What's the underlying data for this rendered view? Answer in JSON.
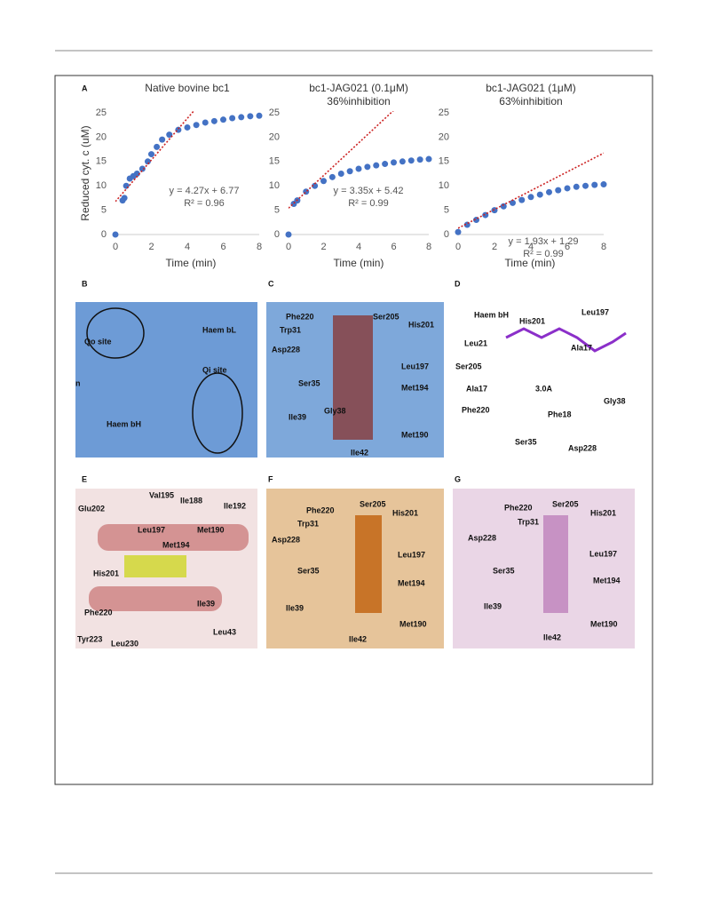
{
  "chart_data": [
    {
      "type": "scatter",
      "title": "Native bovine bc1",
      "xlabel": "Time (min)",
      "ylabel": "Reduced cyt. c (uM)",
      "x": [
        0,
        0.4,
        0.5,
        0.6,
        0.8,
        1,
        1.2,
        1.5,
        1.8,
        2,
        2.3,
        2.6,
        3,
        3.5,
        4,
        4.5,
        5,
        5.5,
        6,
        6.5,
        7,
        7.5,
        8
      ],
      "values": [
        0,
        7,
        7.5,
        10,
        11.5,
        12,
        12.5,
        13.5,
        15,
        16.5,
        18,
        19.5,
        20.5,
        21.5,
        22,
        22.5,
        23,
        23.3,
        23.6,
        23.9,
        24.1,
        24.3,
        24.4
      ],
      "color": "#4472c4",
      "xlim": [
        0,
        8
      ],
      "xticks": [
        0,
        2,
        4,
        6,
        8
      ],
      "ylim": [
        0,
        25
      ],
      "yticks": [
        0,
        5,
        10,
        15,
        20,
        25
      ],
      "trendline": {
        "slope": 4.27,
        "intercept": 6.77,
        "color": "#cc2222",
        "equation": "y = 4.27x + 6.77",
        "r2": "R² = 0.96"
      }
    },
    {
      "type": "scatter",
      "title": "bc1-JAG021 (0.1μM)",
      "subtitle": "36%inhibition",
      "xlabel": "Time (min)",
      "x": [
        0,
        0.3,
        0.5,
        1,
        1.5,
        2,
        2.5,
        3,
        3.5,
        4,
        4.5,
        5,
        5.5,
        6,
        6.5,
        7,
        7.5,
        8
      ],
      "values": [
        0,
        6.3,
        7,
        8.8,
        10,
        11,
        11.8,
        12.5,
        13,
        13.5,
        13.9,
        14.2,
        14.5,
        14.8,
        15,
        15.2,
        15.4,
        15.5
      ],
      "color": "#4472c4",
      "xlim": [
        0,
        8
      ],
      "xticks": [
        0,
        2,
        4,
        6,
        8
      ],
      "ylim": [
        0,
        25
      ],
      "yticks": [
        0,
        5,
        10,
        15,
        20,
        25
      ],
      "trendline": {
        "slope": 3.35,
        "intercept": 5.42,
        "color": "#cc2222",
        "equation": "y = 3.35x + 5.42",
        "r2": "R² = 0.99"
      }
    },
    {
      "type": "scatter",
      "title": "bc1-JAG021 (1μM)",
      "subtitle": "63%inhibition",
      "xlabel": "Time (min)",
      "x": [
        0,
        0.5,
        1,
        1.5,
        2,
        2.5,
        3,
        3.5,
        4,
        4.5,
        5,
        5.5,
        6,
        6.5,
        7,
        7.5,
        8
      ],
      "values": [
        0.5,
        2,
        3,
        4,
        5,
        5.8,
        6.5,
        7.1,
        7.7,
        8.2,
        8.7,
        9.1,
        9.5,
        9.8,
        10,
        10.2,
        10.3
      ],
      "color": "#4472c4",
      "xlim": [
        0,
        8
      ],
      "xticks": [
        0,
        2,
        4,
        6,
        8
      ],
      "ylim": [
        0,
        25
      ],
      "yticks": [
        0,
        5,
        10,
        15,
        20,
        25
      ],
      "trendline": {
        "slope": 1.93,
        "intercept": 1.29,
        "color": "#cc2222",
        "equation": "y = 1.93x + 1.29",
        "r2": "R² = 0.99"
      }
    }
  ],
  "panel_a": {
    "label": "A"
  },
  "panels": [
    {
      "label": "B",
      "annotations": [
        "Haem bL",
        "Qo site",
        "Qi site",
        "n",
        "Haem bH"
      ]
    },
    {
      "label": "C",
      "annotations": [
        "Phe220",
        "Ser205",
        "Trp31",
        "His201",
        "Asp228",
        "Leu197",
        "Ser35",
        "Met194",
        "Gly38",
        "Ile39",
        "Met190",
        "Ile42"
      ]
    },
    {
      "label": "D",
      "annotations": [
        "Haem bH",
        "His201",
        "Leu197",
        "Leu21",
        "Ala17",
        "Ser205",
        "Ala17",
        "Gly38",
        "3.0A",
        "Phe220",
        "Phe18",
        "Ser35",
        "Asp228"
      ]
    },
    {
      "label": "E",
      "annotations": [
        "Val195",
        "Glu202",
        "Ile188",
        "Ile192",
        "Leu197",
        "Met190",
        "Met194",
        "His201",
        "Phe220",
        "Ile39",
        "Leu43",
        "Tyr223",
        "Leu230"
      ]
    },
    {
      "label": "F",
      "annotations": [
        "Phe220",
        "Ser205",
        "Trp31",
        "His201",
        "Asp228",
        "Leu197",
        "Ser35",
        "Met194",
        "Ile39",
        "Met190",
        "Ile42"
      ]
    },
    {
      "label": "G",
      "annotations": [
        "Phe220",
        "Ser205",
        "Trp31",
        "His201",
        "Asp228",
        "Leu197",
        "Ser35",
        "Met194",
        "Ile39",
        "Met190",
        "Ile42"
      ]
    }
  ]
}
